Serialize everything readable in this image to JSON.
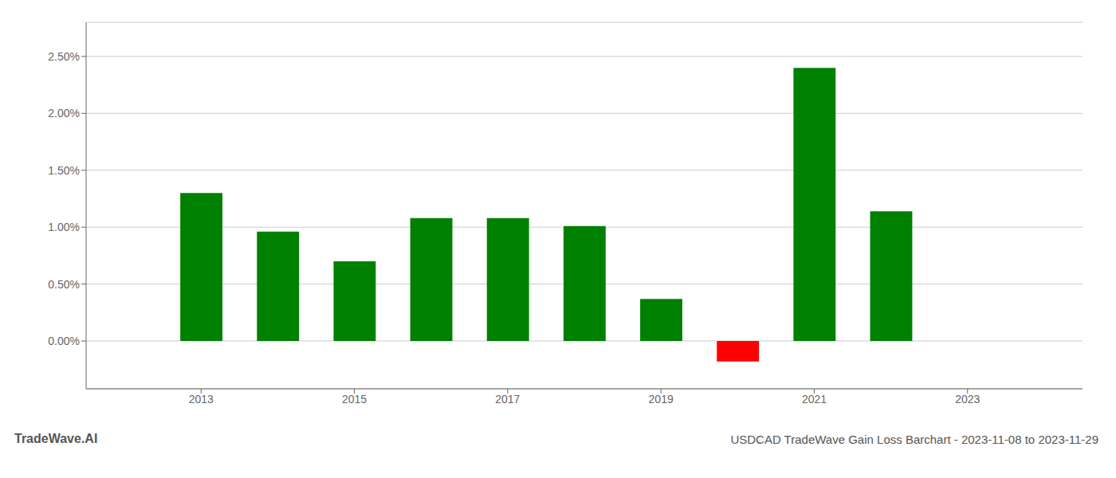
{
  "chart_data": {
    "type": "bar",
    "title": "USDCAD TradeWave Gain Loss Barchart - 2023-11-08 to 2023-11-29",
    "annotations": [
      "TradeWave.AI"
    ],
    "x": [
      2013,
      2014,
      2015,
      2016,
      2017,
      2018,
      2019,
      2020,
      2021,
      2022
    ],
    "values": [
      1.3,
      0.96,
      0.7,
      1.08,
      1.08,
      1.01,
      0.37,
      -0.18,
      2.4,
      1.14
    ],
    "colors": [
      "#008000",
      "#008000",
      "#008000",
      "#008000",
      "#008000",
      "#008000",
      "#008000",
      "#ff0000",
      "#008000",
      "#008000"
    ],
    "xlim": [
      2011.5,
      2024.5
    ],
    "xticks": [
      2013,
      2015,
      2017,
      2019,
      2021,
      2023
    ],
    "ylim": [
      -0.42,
      2.8
    ],
    "yticks": [
      {
        "value": 0.0,
        "label": "0.00%"
      },
      {
        "value": 0.5,
        "label": "0.50%"
      },
      {
        "value": 1.0,
        "label": "1.00%"
      },
      {
        "value": 1.5,
        "label": "1.50%"
      },
      {
        "value": 2.0,
        "label": "2.00%"
      },
      {
        "value": 2.5,
        "label": "2.50%"
      }
    ],
    "grid": true
  }
}
